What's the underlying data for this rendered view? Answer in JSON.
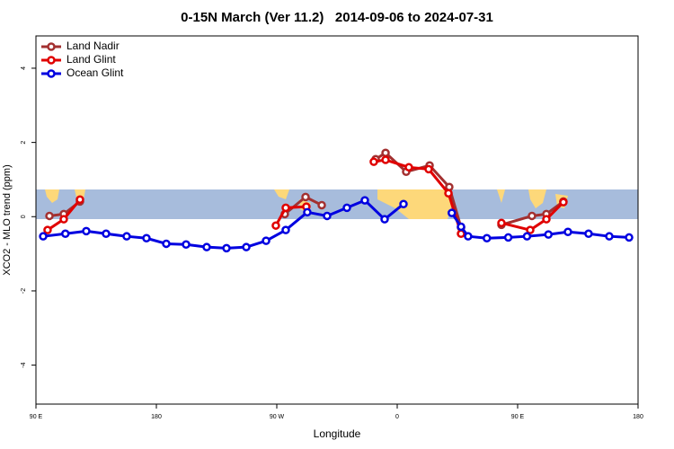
{
  "chart_data": {
    "type": "line",
    "title": "0-15N March (Ver 11.2)   2014-09-06 to 2024-07-31",
    "xlabel": "Longitude",
    "ylabel": "XCO2 - MLO trend (ppm)",
    "xlim": [
      90,
      540
    ],
    "ylim": [
      -5.05,
      4.87
    ],
    "xticks": [
      {
        "value": 90,
        "label": "90 E"
      },
      180,
      {
        "value": 270,
        "label": "90 W"
      },
      {
        "value": 360,
        "label": "0"
      },
      {
        "value": 450,
        "label": "90 E"
      },
      {
        "value": 540,
        "label": "180"
      }
    ],
    "yticks": [
      -4,
      -2,
      0,
      2,
      4
    ],
    "legend": "upper left",
    "series": [
      {
        "name": "Land Nadir",
        "color": "#a33030",
        "x": [
          100.1,
          110.8,
          122.9,
          null,
          276.0,
          291.5,
          303.6,
          null,
          343.9,
          351.3,
          366.7,
          384.2,
          398.9,
          407.7,
          null,
          437.9,
          460.7,
          471.5,
          484.2
        ],
        "values": [
          0.02,
          0.07,
          0.41,
          null,
          0.07,
          0.53,
          0.31,
          null,
          1.55,
          1.72,
          1.21,
          1.38,
          0.8,
          -0.29,
          null,
          -0.22,
          0.02,
          0.07,
          0.41
        ]
      },
      {
        "name": "Land Glint",
        "color": "#e00000",
        "x": [
          98.7,
          110.8,
          122.9,
          null,
          269.3,
          276.7,
          292.1,
          null,
          342.5,
          351.3,
          368.7,
          383.5,
          398.3,
          407.7,
          null,
          437.9,
          459.4,
          471.5,
          484.2
        ],
        "values": [
          -0.36,
          -0.07,
          0.46,
          null,
          -0.24,
          0.24,
          0.27,
          null,
          1.48,
          1.53,
          1.33,
          1.28,
          0.63,
          -0.46,
          null,
          -0.17,
          -0.36,
          -0.07,
          0.39
        ]
      },
      {
        "name": "Ocean Glint",
        "color": "#0000e0",
        "x": [
          95.4,
          112.0,
          127.6,
          142.4,
          157.8,
          172.6,
          187.4,
          202.2,
          217.6,
          232.4,
          247.2,
          262.0,
          276.7,
          292.8,
          307.6,
          322.4,
          335.8,
          350.6,
          364.7,
          null,
          400.8,
          407.7,
          413.0,
          427.0,
          443.0,
          457.0,
          473.0,
          487.6,
          503.0,
          518.5,
          533.3
        ],
        "values": [
          -0.53,
          -0.46,
          -0.39,
          -0.46,
          -0.53,
          -0.58,
          -0.73,
          -0.75,
          -0.82,
          -0.85,
          -0.82,
          -0.65,
          -0.36,
          0.12,
          0.02,
          0.24,
          0.44,
          -0.07,
          0.34,
          null,
          0.1,
          -0.27,
          -0.53,
          -0.58,
          -0.56,
          -0.53,
          -0.48,
          -0.41,
          -0.46,
          -0.53,
          -0.56
        ]
      }
    ]
  }
}
